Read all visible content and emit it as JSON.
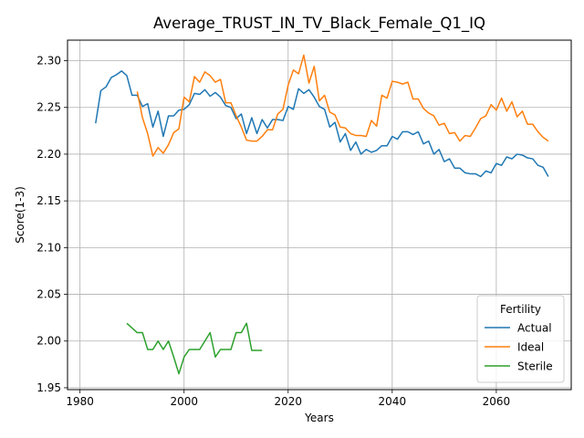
{
  "chart_data": {
    "type": "line",
    "title": "Average_TRUST_IN_TV_Black_Female_Q1_IQ",
    "xlabel": "Years",
    "ylabel": "Score(1-3)",
    "xlim": [
      1977.6,
      2074.4
    ],
    "ylim": [
      1.948,
      2.322
    ],
    "xticks": [
      1980,
      2000,
      2020,
      2040,
      2060
    ],
    "yticks": [
      1.95,
      2.0,
      2.05,
      2.1,
      2.15,
      2.2,
      2.25,
      2.3
    ],
    "ytick_labels": [
      "1.95",
      "2.00",
      "2.05",
      "2.10",
      "2.15",
      "2.20",
      "2.25",
      "2.30"
    ],
    "grid": true,
    "legend": {
      "title": "Fertility",
      "position": "lower right"
    },
    "series": [
      {
        "name": "Actual",
        "color": "#1f77b4",
        "x": [
          1983,
          1984,
          1985,
          1986,
          1987,
          1988,
          1989,
          1990,
          1991,
          1992,
          1993,
          1994,
          1995,
          1996,
          1997,
          1998,
          1999,
          2000,
          2001,
          2002,
          2003,
          2004,
          2005,
          2006,
          2007,
          2008,
          2009,
          2010,
          2011,
          2012,
          2013,
          2014,
          2015,
          2016,
          2017,
          2018,
          2019,
          2020,
          2021,
          2022,
          2023,
          2024,
          2025,
          2026,
          2027,
          2028,
          2029,
          2030,
          2031,
          2032,
          2033,
          2034,
          2035,
          2036,
          2037,
          2038,
          2039,
          2040,
          2041,
          2042,
          2043,
          2044,
          2045,
          2046,
          2047,
          2048,
          2049,
          2050,
          2051,
          2052,
          2053,
          2054,
          2055,
          2056,
          2057,
          2058,
          2059,
          2060,
          2061,
          2062,
          2063,
          2064,
          2065,
          2066,
          2067,
          2068,
          2069,
          2070
        ],
        "y": [
          2.233,
          2.268,
          2.272,
          2.282,
          2.285,
          2.289,
          2.284,
          2.263,
          2.263,
          2.251,
          2.254,
          2.229,
          2.246,
          2.219,
          2.241,
          2.241,
          2.247,
          2.248,
          2.253,
          2.265,
          2.264,
          2.269,
          2.262,
          2.266,
          2.261,
          2.252,
          2.25,
          2.238,
          2.243,
          2.222,
          2.239,
          2.222,
          2.237,
          2.228,
          2.237,
          2.237,
          2.236,
          2.251,
          2.248,
          2.27,
          2.265,
          2.269,
          2.261,
          2.251,
          2.248,
          2.229,
          2.234,
          2.213,
          2.222,
          2.204,
          2.213,
          2.2,
          2.205,
          2.202,
          2.204,
          2.209,
          2.209,
          2.219,
          2.216,
          2.224,
          2.224,
          2.221,
          2.224,
          2.211,
          2.214,
          2.2,
          2.205,
          2.192,
          2.195,
          2.185,
          2.185,
          2.18,
          2.179,
          2.179,
          2.176,
          2.182,
          2.18,
          2.19,
          2.188,
          2.197,
          2.195,
          2.2,
          2.199,
          2.196,
          2.195,
          2.188,
          2.186,
          2.176
        ]
      },
      {
        "name": "Ideal",
        "color": "#ff7f0e",
        "x": [
          1991,
          1992,
          1993,
          1994,
          1995,
          1996,
          1997,
          1998,
          1999,
          2000,
          2001,
          2002,
          2003,
          2004,
          2005,
          2006,
          2007,
          2008,
          2009,
          2010,
          2011,
          2012,
          2013,
          2014,
          2015,
          2016,
          2017,
          2018,
          2019,
          2020,
          2021,
          2022,
          2023,
          2024,
          2025,
          2026,
          2027,
          2028,
          2029,
          2030,
          2031,
          2032,
          2033,
          2034,
          2035,
          2036,
          2037,
          2038,
          2039,
          2040,
          2041,
          2042,
          2043,
          2044,
          2045,
          2046,
          2047,
          2048,
          2049,
          2050,
          2051,
          2052,
          2053,
          2054,
          2055,
          2056,
          2057,
          2058,
          2059,
          2060,
          2061,
          2062,
          2063,
          2064,
          2065,
          2066,
          2067,
          2068,
          2069,
          2070
        ],
        "y": [
          2.267,
          2.239,
          2.222,
          2.198,
          2.207,
          2.201,
          2.21,
          2.223,
          2.227,
          2.261,
          2.256,
          2.283,
          2.277,
          2.288,
          2.284,
          2.277,
          2.28,
          2.255,
          2.255,
          2.241,
          2.229,
          2.215,
          2.214,
          2.214,
          2.219,
          2.226,
          2.226,
          2.243,
          2.248,
          2.274,
          2.29,
          2.286,
          2.306,
          2.276,
          2.294,
          2.257,
          2.263,
          2.245,
          2.242,
          2.229,
          2.228,
          2.222,
          2.22,
          2.22,
          2.219,
          2.236,
          2.23,
          2.263,
          2.26,
          2.278,
          2.277,
          2.275,
          2.277,
          2.259,
          2.259,
          2.249,
          2.244,
          2.241,
          2.231,
          2.233,
          2.222,
          2.223,
          2.214,
          2.22,
          2.219,
          2.228,
          2.238,
          2.241,
          2.253,
          2.247,
          2.26,
          2.246,
          2.256,
          2.24,
          2.246,
          2.232,
          2.232,
          2.224,
          2.218,
          2.214
        ]
      },
      {
        "name": "Sterile",
        "color": "#2ca02c",
        "x": [
          1989,
          1990,
          1991,
          1992,
          1993,
          1994,
          1995,
          1996,
          1997,
          1998,
          1999,
          2000,
          2001,
          2002,
          2003,
          2004,
          2005,
          2006,
          2007,
          2008,
          2009,
          2010,
          2011,
          2012,
          2013,
          2014,
          2015
        ],
        "y": [
          2.019,
          2.014,
          2.009,
          2.009,
          1.991,
          1.991,
          2.0,
          1.991,
          2.0,
          1.983,
          1.965,
          1.983,
          1.991,
          1.991,
          1.991,
          2.0,
          2.009,
          1.983,
          1.991,
          1.991,
          1.991,
          2.009,
          2.009,
          2.019,
          1.99,
          1.99,
          1.99
        ]
      }
    ]
  }
}
